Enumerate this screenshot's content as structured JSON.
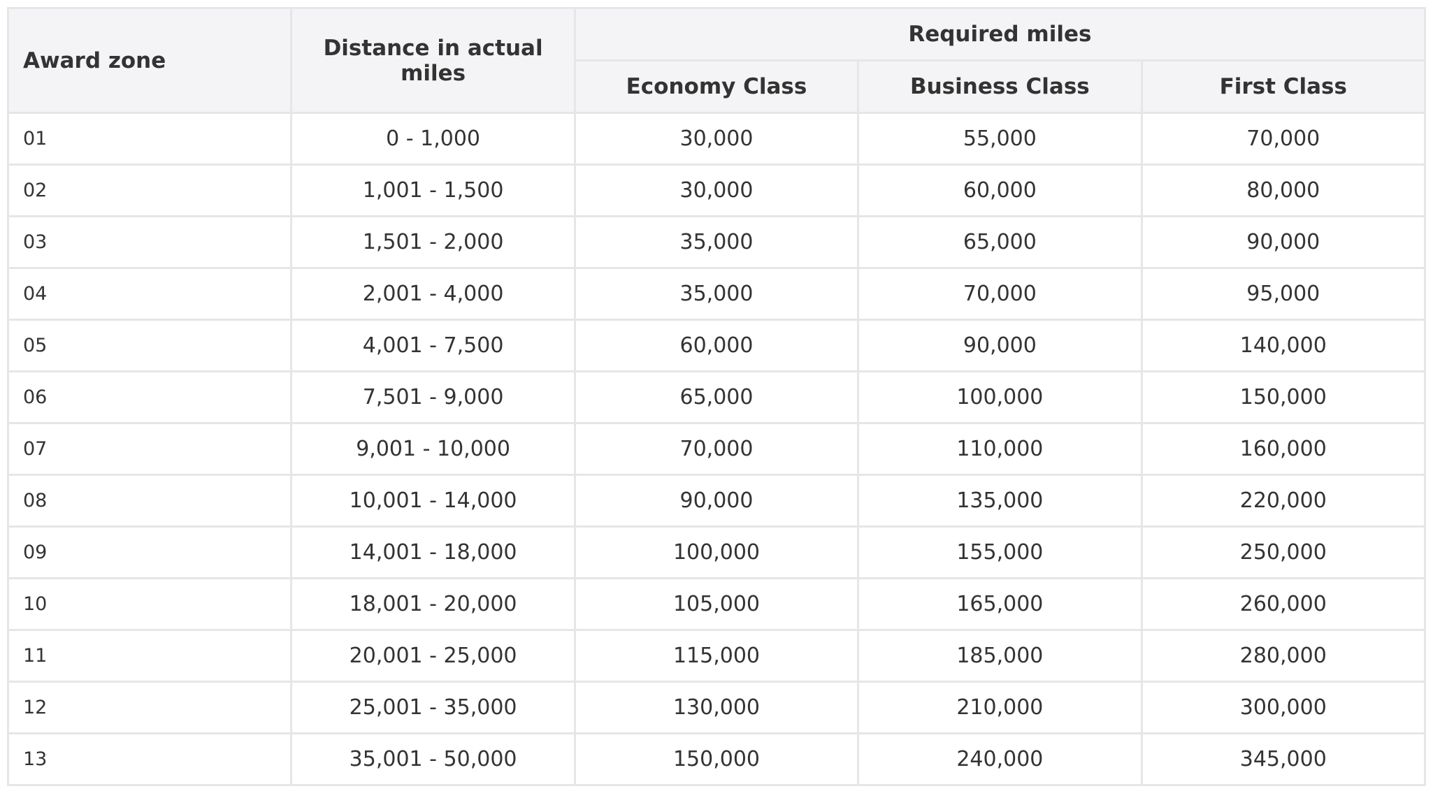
{
  "table": {
    "header": {
      "award_zone": "Award zone",
      "distance": "Distance in actual miles",
      "required": "Required miles",
      "classes": [
        "Economy Class",
        "Business Class",
        "First Class"
      ]
    },
    "rows": [
      [
        "01",
        "0 - 1,000",
        "30,000",
        "55,000",
        "70,000"
      ],
      [
        "02",
        "1,001 - 1,500",
        "30,000",
        "60,000",
        "80,000"
      ],
      [
        "03",
        "1,501 - 2,000",
        "35,000",
        "65,000",
        "90,000"
      ],
      [
        "04",
        "2,001 - 4,000",
        "35,000",
        "70,000",
        "95,000"
      ],
      [
        "05",
        "4,001 - 7,500",
        "60,000",
        "90,000",
        "140,000"
      ],
      [
        "06",
        "7,501 - 9,000",
        "65,000",
        "100,000",
        "150,000"
      ],
      [
        "07",
        "9,001 - 10,000",
        "70,000",
        "110,000",
        "160,000"
      ],
      [
        "08",
        "10,001 - 14,000",
        "90,000",
        "135,000",
        "220,000"
      ],
      [
        "09",
        "14,001 - 18,000",
        "100,000",
        "155,000",
        "250,000"
      ],
      [
        "10",
        "18,001 - 20,000",
        "105,000",
        "165,000",
        "260,000"
      ],
      [
        "11",
        "20,001 - 25,000",
        "115,000",
        "185,000",
        "280,000"
      ],
      [
        "12",
        "25,001 - 35,000",
        "130,000",
        "210,000",
        "300,000"
      ],
      [
        "13",
        "35,001 - 50,000",
        "150,000",
        "240,000",
        "345,000"
      ]
    ]
  }
}
